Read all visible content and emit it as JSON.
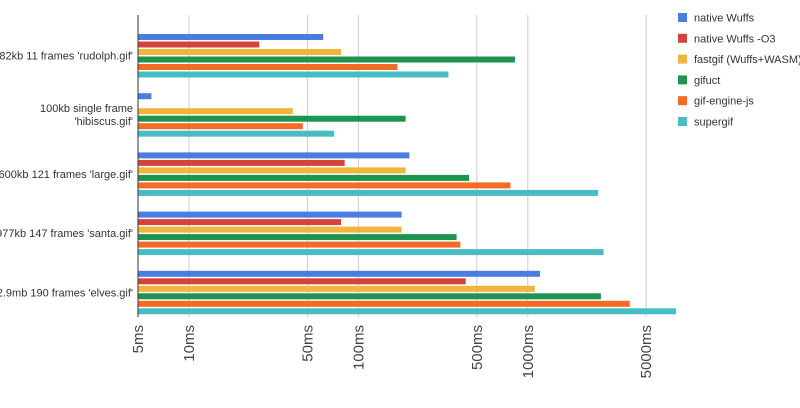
{
  "chart_data": {
    "type": "bar",
    "orientation": "horizontal",
    "x_scale": "log",
    "xlim": [
      5,
      10000
    ],
    "grid": true,
    "legend_position": "right",
    "categories": [
      [
        "82kb 11 frames 'rudolph.gif'"
      ],
      [
        "100kb single frame",
        "'hibiscus.gif'"
      ],
      [
        "600kb 121 frames 'large.gif'"
      ],
      [
        "977kb 147 frames 'santa.gif'"
      ],
      [
        "2.9mb 190 frames 'elves.gif'"
      ]
    ],
    "ticks": [
      {
        "value": 5,
        "label": "5ms"
      },
      {
        "value": 10,
        "label": "10ms"
      },
      {
        "value": 50,
        "label": "50ms"
      },
      {
        "value": 100,
        "label": "100ms"
      },
      {
        "value": 500,
        "label": "500ms"
      },
      {
        "value": 1000,
        "label": "1000ms"
      },
      {
        "value": 5000,
        "label": "5000ms"
      }
    ],
    "series": [
      {
        "name": "native Wuffs",
        "color": "#4a7de0",
        "values": [
          62,
          6,
          200,
          180,
          1180
        ]
      },
      {
        "name": "native Wuffs -O3",
        "color": "#d5443a",
        "values": [
          26,
          null,
          83,
          79,
          430
        ]
      },
      {
        "name": "fastgif (Wuffs+WASM)",
        "color": "#f0b53a",
        "values": [
          79,
          41,
          190,
          180,
          1100
        ]
      },
      {
        "name": "gifuct",
        "color": "#1e9451",
        "values": [
          840,
          190,
          450,
          380,
          2700
        ]
      },
      {
        "name": "gif-engine-js",
        "color": "#f36b24",
        "values": [
          170,
          47,
          790,
          400,
          4000
        ]
      },
      {
        "name": "supergif",
        "color": "#47bdc3",
        "values": [
          340,
          72,
          2600,
          2800,
          7500
        ]
      }
    ]
  }
}
